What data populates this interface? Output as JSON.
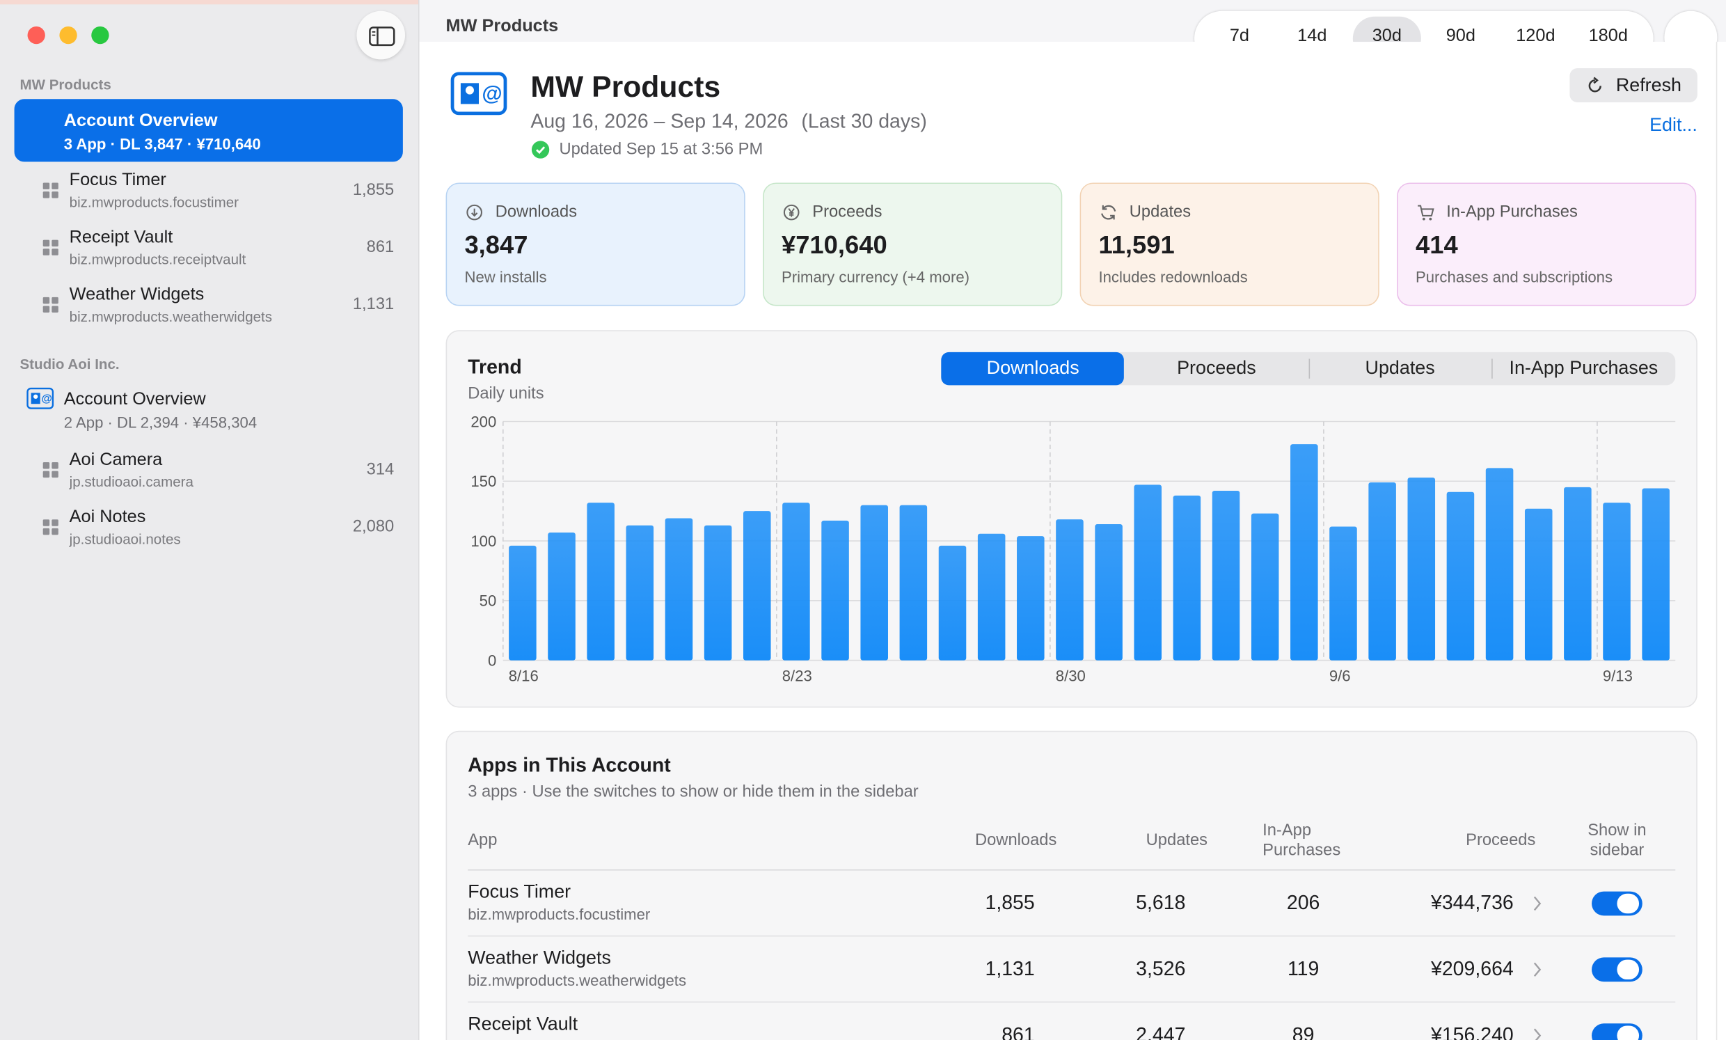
{
  "window": {
    "title": "MW Products",
    "ranges": [
      "7d",
      "14d",
      "30d",
      "90d",
      "120d",
      "180d"
    ]
  },
  "sidebar": {
    "groups": [
      {
        "title": "MW Products",
        "overview": {
          "name": "Account Overview",
          "summary": "3 App · DL 3,847 · ¥710,640"
        },
        "apps": [
          {
            "name": "Focus Timer",
            "bundle_id": "biz.mwproducts.focustimer",
            "downloads": "1,855"
          },
          {
            "name": "Receipt Vault",
            "bundle_id": "biz.mwproducts.receiptvault",
            "downloads": "861"
          },
          {
            "name": "Weather Widgets",
            "bundle_id": "biz.mwproducts.weatherwidgets",
            "downloads": "1,131"
          }
        ]
      },
      {
        "title": "Studio Aoi Inc.",
        "overview": {
          "name": "Account Overview",
          "summary": "2 App · DL 2,394 · ¥458,304"
        },
        "apps": [
          {
            "name": "Aoi Camera",
            "bundle_id": "jp.studioaoi.camera",
            "downloads": "314"
          },
          {
            "name": "Aoi Notes",
            "bundle_id": "jp.studioaoi.notes",
            "downloads": "2,080"
          }
        ]
      }
    ]
  },
  "header": {
    "title": "MW Products",
    "date_range": "Aug 16, 2026 – Sep 14, 2026",
    "range_note": "(Last 30 days)",
    "updated": "Updated Sep 15 at 3:56 PM",
    "refresh": "Refresh",
    "edit": "Edit..."
  },
  "cards": [
    {
      "label": "Downloads",
      "value": "3,847",
      "note": "New installs"
    },
    {
      "label": "Proceeds",
      "value": "¥710,640",
      "note": "Primary currency (+4 more)"
    },
    {
      "label": "Updates",
      "value": "11,591",
      "note": "Includes redownloads"
    },
    {
      "label": "In-App Purchases",
      "value": "414",
      "note": "Purchases and subscriptions"
    }
  ],
  "trend": {
    "title": "Trend",
    "subtitle": "Daily units",
    "tabs": [
      "Downloads",
      "Proceeds",
      "Updates",
      "In-App Purchases"
    ],
    "chart_data": {
      "type": "bar",
      "categories": [
        "8/16",
        null,
        null,
        null,
        null,
        null,
        null,
        "8/23",
        null,
        null,
        null,
        null,
        null,
        null,
        "8/30",
        null,
        null,
        null,
        null,
        null,
        null,
        "9/6",
        null,
        null,
        null,
        null,
        null,
        null,
        "9/13",
        null
      ],
      "values": [
        96,
        107,
        132,
        113,
        119,
        113,
        125,
        132,
        117,
        130,
        130,
        96,
        106,
        104,
        118,
        114,
        147,
        138,
        142,
        123,
        181,
        112,
        149,
        153,
        141,
        161,
        127,
        145,
        132,
        144
      ],
      "color": "#1a8ef8",
      "ylim": [
        0,
        200
      ],
      "yticks": [
        0,
        50,
        100,
        150,
        200
      ],
      "grid": true
    }
  },
  "apps_table": {
    "title": "Apps in This Account",
    "subtitle": "3 apps · Use the switches to show or hide them in the sidebar",
    "columns": [
      "App",
      "Downloads",
      "Updates",
      "In-App Purchases",
      "Proceeds",
      "Show in sidebar"
    ],
    "rows": [
      {
        "name": "Focus Timer",
        "bundle_id": "biz.mwproducts.focustimer",
        "downloads": "1,855",
        "updates": "5,618",
        "in_app_purchases": "206",
        "proceeds": "¥344,736"
      },
      {
        "name": "Weather Widgets",
        "bundle_id": "biz.mwproducts.weatherwidgets",
        "downloads": "1,131",
        "updates": "3,526",
        "in_app_purchases": "119",
        "proceeds": "¥209,664"
      },
      {
        "name": "Receipt Vault",
        "downloads": "861",
        "updates": "2,447",
        "in_app_purchases": "89",
        "proceeds": "¥156,240"
      }
    ]
  }
}
